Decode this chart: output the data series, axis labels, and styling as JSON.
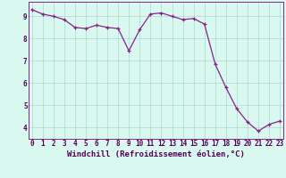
{
  "x": [
    0,
    1,
    2,
    3,
    4,
    5,
    6,
    7,
    8,
    9,
    10,
    11,
    12,
    13,
    14,
    15,
    16,
    17,
    18,
    19,
    20,
    21,
    22,
    23
  ],
  "y": [
    9.3,
    9.1,
    9.0,
    8.85,
    8.5,
    8.45,
    8.6,
    8.5,
    8.45,
    7.45,
    8.4,
    9.1,
    9.15,
    9.0,
    8.85,
    8.9,
    8.65,
    6.85,
    5.8,
    4.85,
    4.25,
    3.85,
    4.15,
    4.3
  ],
  "line_color": "#882288",
  "marker": "+",
  "marker_size": 3,
  "marker_linewidth": 0.9,
  "bg_color": "#d8f8f0",
  "grid_color": "#b0d8cc",
  "xlabel": "Windchill (Refroidissement éolien,°C)",
  "xlabel_color": "#550055",
  "xlabel_fontsize": 6.5,
  "tick_label_color": "#550055",
  "tick_fontsize": 5.5,
  "yticks": [
    4,
    5,
    6,
    7,
    8,
    9
  ],
  "xticks": [
    0,
    1,
    2,
    3,
    4,
    5,
    6,
    7,
    8,
    9,
    10,
    11,
    12,
    13,
    14,
    15,
    16,
    17,
    18,
    19,
    20,
    21,
    22,
    23
  ],
  "ylim": [
    3.5,
    9.65
  ],
  "xlim": [
    -0.3,
    23.3
  ],
  "spine_color": "#882288",
  "linewidth": 0.9
}
